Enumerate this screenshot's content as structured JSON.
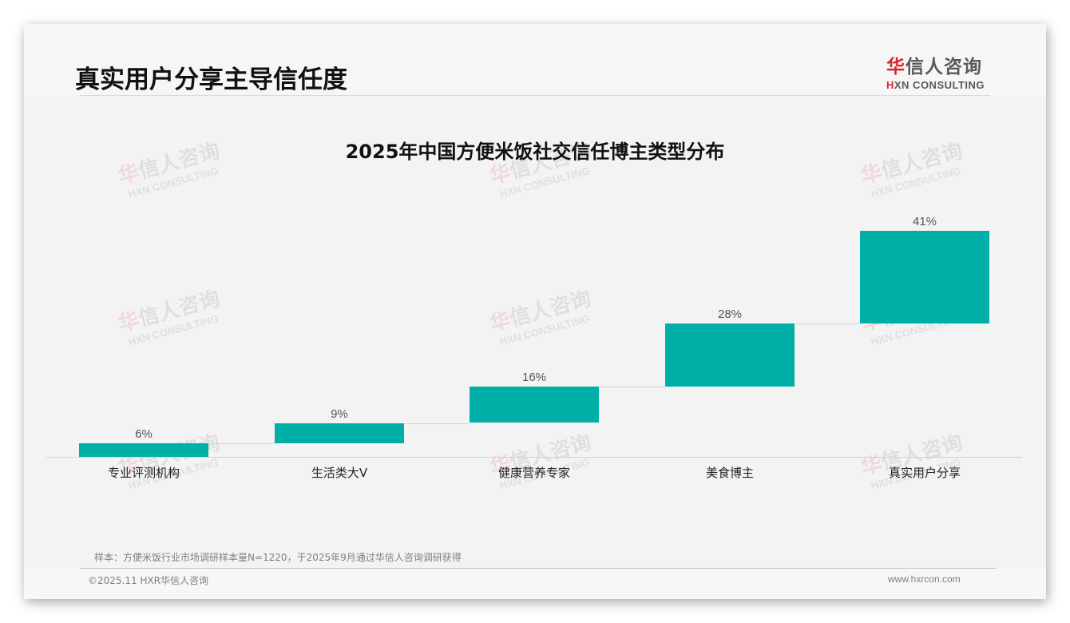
{
  "page": {
    "title": "真实用户分享主导信任度",
    "logo": {
      "cn_accent": "华",
      "cn_rest": "信人咨询",
      "en_accent": "H",
      "en_rest": "XN CONSULTING"
    },
    "watermark": {
      "cn_accent": "华",
      "cn_rest": "信人咨询",
      "en": "HXN CONSULTING"
    },
    "source_note": "样本：方便米饭行业市场调研样本量N=1220，于2025年9月通过华信人咨询调研获得",
    "copyright": "©2025.11 HXR华信人咨询",
    "website": "www.hxrcon.com"
  },
  "colors": {
    "bar": "#00b0a8",
    "brand_red": "#d9272e",
    "background": "#f3f3f3"
  },
  "chart_data": {
    "type": "bar",
    "subtype": "waterfall",
    "title": "2025年中国方便米饭社交信任博主类型分布",
    "categories": [
      "专业评测机构",
      "生活类大V",
      "健康营养专家",
      "美食博主",
      "真实用户分享"
    ],
    "values": [
      6,
      9,
      16,
      28,
      41
    ],
    "value_labels": [
      "6%",
      "9%",
      "16%",
      "28%",
      "41%"
    ],
    "unit": "%",
    "xlabel": "",
    "ylabel": "",
    "ylim": [
      0,
      100
    ],
    "grid": false,
    "legend": "none",
    "bar_color": "#00b0a8"
  }
}
